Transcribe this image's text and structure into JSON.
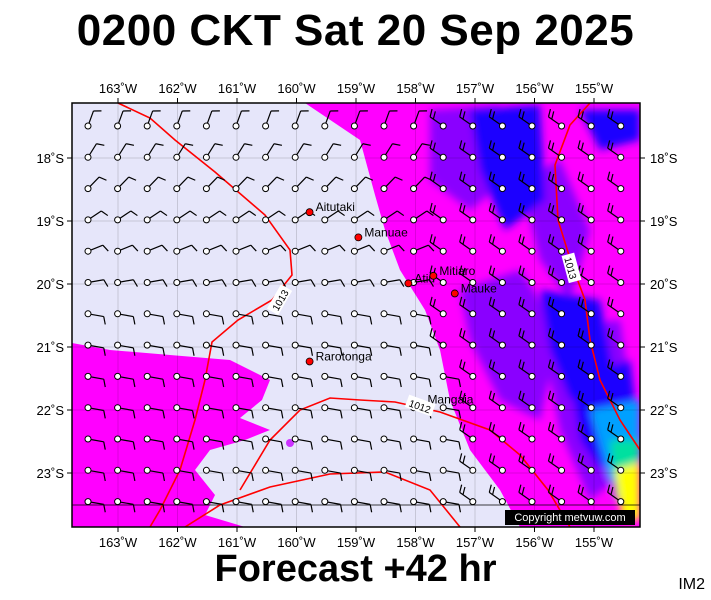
{
  "header": {
    "title": "0200 CKT Sat 20 Sep 2025"
  },
  "footer": {
    "forecast": "Forecast +42 hr",
    "image_tag": "IM2"
  },
  "map": {
    "lon_labels": [
      "163˚W",
      "162˚W",
      "161˚W",
      "160˚W",
      "159˚W",
      "158˚W",
      "157˚W",
      "156˚W",
      "155˚W"
    ],
    "lat_labels": [
      "18˚S",
      "19˚S",
      "20˚S",
      "21˚S",
      "22˚S",
      "23˚S"
    ],
    "places": [
      {
        "name": "Aitutaki",
        "lon": -159.78,
        "lat": -18.86
      },
      {
        "name": "Manuae",
        "lon": -158.96,
        "lat": -19.26
      },
      {
        "name": "Atiu",
        "lon": -158.12,
        "lat": -19.99
      },
      {
        "name": "Mitiaro",
        "lon": -157.7,
        "lat": -19.87
      },
      {
        "name": "Mauke",
        "lon": -157.34,
        "lat": -20.15
      },
      {
        "name": "Rarotonga",
        "lon": -159.78,
        "lat": -21.23
      },
      {
        "name": "Mangaia",
        "lon": -157.9,
        "lat": -21.91
      }
    ],
    "isobar_labels": [
      "1013",
      "1013",
      "1012"
    ],
    "copyright": "Copyright metvuw.com",
    "colors": {
      "calm": "#e6e6fa",
      "wind_light": "#ff00ff",
      "wind_mod": "#8a00ff",
      "wind_strong": "#1f00ff",
      "wind_stronger": "#00a0ff",
      "wind_max": "#ffff00",
      "isobar": "#ff0000",
      "place_marker": "#ff0000"
    }
  }
}
